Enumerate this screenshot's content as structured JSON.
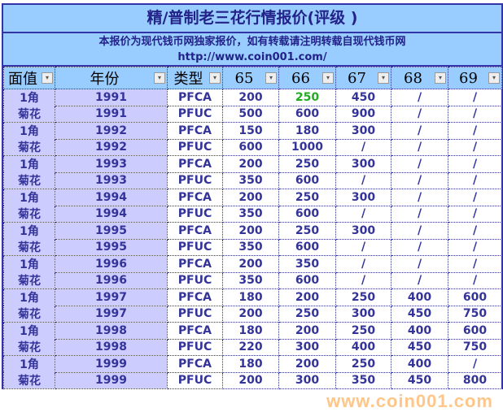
{
  "title": "精/普制老三花行情报价(评级 )",
  "subtitle": "本报价为现代钱币网独家报价，如有转载请注明转载自现代钱币网",
  "url": "http://www.coin001.com/",
  "watermark": "www.coin001.com",
  "headers": [
    "面值",
    "年份",
    "类型",
    "65",
    "66",
    "67",
    "68",
    "69"
  ],
  "dropdown_icon": "▾",
  "highlight_color": "#22aa22",
  "rows": [
    [
      "1角",
      "1991",
      "PFCA",
      "200",
      "250",
      "450",
      "/",
      "/"
    ],
    [
      "菊花",
      "1991",
      "PFUC",
      "500",
      "600",
      "900",
      "/",
      "/"
    ],
    [
      "1角",
      "1992",
      "PFCA",
      "150",
      "180",
      "300",
      "/",
      "/"
    ],
    [
      "菊花",
      "1992",
      "PFUC",
      "600",
      "1000",
      "/",
      "/",
      "/"
    ],
    [
      "1角",
      "1993",
      "PFCA",
      "200",
      "250",
      "300",
      "/",
      "/"
    ],
    [
      "菊花",
      "1993",
      "PFUC",
      "350",
      "600",
      "/",
      "/",
      "/"
    ],
    [
      "1角",
      "1994",
      "PFCA",
      "200",
      "250",
      "300",
      "/",
      "/"
    ],
    [
      "菊花",
      "1994",
      "PFUC",
      "350",
      "600",
      "/",
      "/",
      "/"
    ],
    [
      "1角",
      "1995",
      "PFCA",
      "200",
      "250",
      "300",
      "/",
      "/"
    ],
    [
      "菊花",
      "1995",
      "PFUC",
      "350",
      "600",
      "/",
      "/",
      "/"
    ],
    [
      "1角",
      "1996",
      "PFCA",
      "200",
      "350",
      "/",
      "/",
      "/"
    ],
    [
      "菊花",
      "1996",
      "PFUC",
      "350",
      "600",
      "/",
      "/",
      "/"
    ],
    [
      "1角",
      "1997",
      "PFCA",
      "180",
      "200",
      "250",
      "400",
      "600"
    ],
    [
      "菊花",
      "1997",
      "PFUC",
      "200",
      "250",
      "300",
      "450",
      "750"
    ],
    [
      "1角",
      "1998",
      "PFCA",
      "180",
      "200",
      "250",
      "400",
      "600"
    ],
    [
      "菊花",
      "1998",
      "PFUC",
      "220",
      "300",
      "400",
      "450",
      "750"
    ],
    [
      "1角",
      "1999",
      "PFCA",
      "180",
      "200",
      "250",
      "400",
      "/"
    ],
    [
      "菊花",
      "1999",
      "PFUC",
      "200",
      "300",
      "350",
      "450",
      "800"
    ]
  ]
}
